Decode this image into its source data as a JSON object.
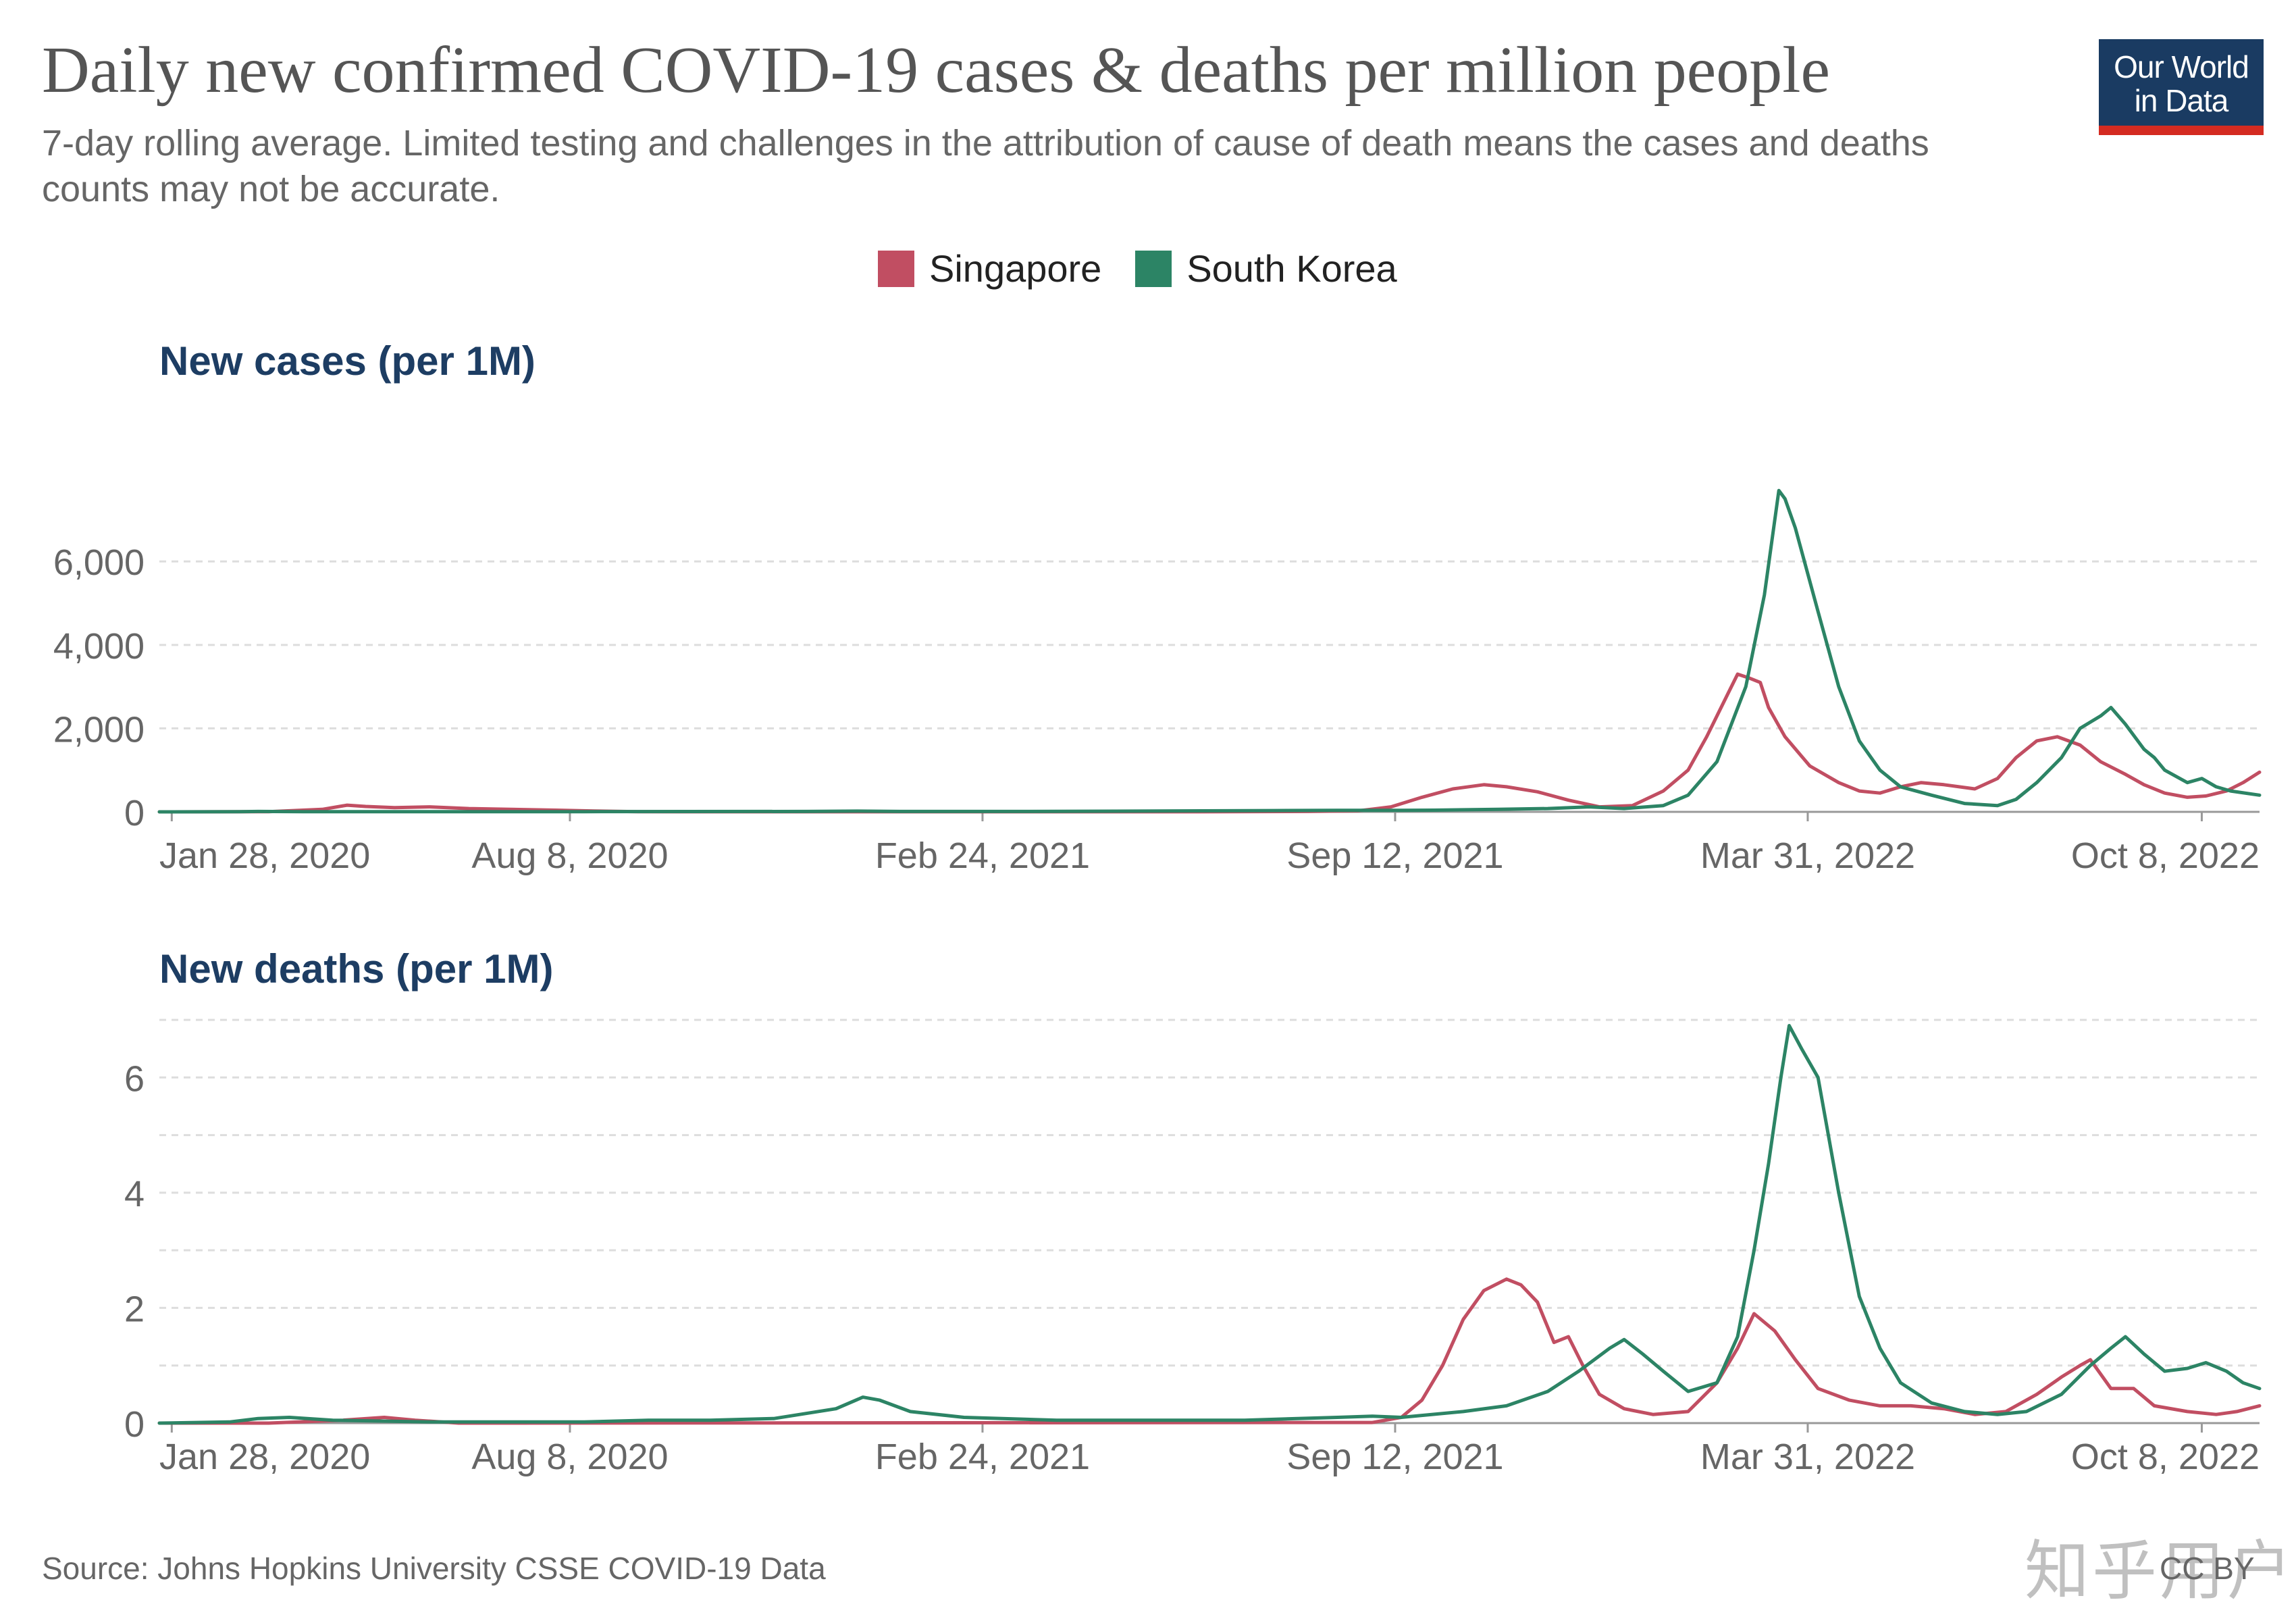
{
  "title": "Daily new confirmed COVID-19 cases & deaths per million people",
  "subtitle": "7-day rolling average. Limited testing and challenges in the attribution of cause of death means the cases and deaths counts may not be accurate.",
  "logo": {
    "line1": "Our World",
    "line2": "in Data"
  },
  "legend": [
    {
      "name": "Singapore",
      "color": "#c14e62"
    },
    {
      "name": "South Korea",
      "color": "#2c8465"
    }
  ],
  "source": "Source: Johns Hopkins University CSSE COVID-19 Data",
  "license": "CC BY",
  "watermark": "知乎用户",
  "chart_data": [
    {
      "type": "line",
      "title": "New cases (per 1M)",
      "x_axis": {
        "min": "2020-01-22",
        "max": "2022-11-05",
        "ticks": [
          "Jan 28, 2020",
          "Aug 8, 2020",
          "Feb 24, 2021",
          "Sep 12, 2021",
          "Mar 31, 2022",
          "Oct 8, 2022"
        ]
      },
      "ylim": [
        0,
        7800
      ],
      "yticks": [
        0,
        2000,
        4000,
        6000
      ],
      "ytick_labels": [
        "0",
        "2,000",
        "4,000",
        "6,000"
      ],
      "grid": true,
      "series": [
        {
          "name": "Singapore",
          "color": "#c14e62",
          "points": [
            [
              "2020-01-22",
              0
            ],
            [
              "2020-03-15",
              5
            ],
            [
              "2020-04-10",
              60
            ],
            [
              "2020-04-22",
              160
            ],
            [
              "2020-05-01",
              130
            ],
            [
              "2020-05-15",
              100
            ],
            [
              "2020-06-01",
              120
            ],
            [
              "2020-06-20",
              80
            ],
            [
              "2020-07-10",
              60
            ],
            [
              "2020-08-01",
              40
            ],
            [
              "2020-08-20",
              20
            ],
            [
              "2020-09-10",
              5
            ],
            [
              "2020-10-01",
              1
            ],
            [
              "2021-06-01",
              1
            ],
            [
              "2021-08-01",
              10
            ],
            [
              "2021-08-25",
              25
            ],
            [
              "2021-09-10",
              120
            ],
            [
              "2021-09-25",
              350
            ],
            [
              "2021-10-10",
              550
            ],
            [
              "2021-10-25",
              650
            ],
            [
              "2021-11-05",
              600
            ],
            [
              "2021-11-20",
              480
            ],
            [
              "2021-12-05",
              280
            ],
            [
              "2021-12-20",
              120
            ],
            [
              "2022-01-05",
              150
            ],
            [
              "2022-01-20",
              500
            ],
            [
              "2022-02-01",
              1000
            ],
            [
              "2022-02-10",
              1800
            ],
            [
              "2022-02-20",
              2800
            ],
            [
              "2022-02-25",
              3300
            ],
            [
              "2022-03-03",
              3200
            ],
            [
              "2022-03-08",
              3100
            ],
            [
              "2022-03-12",
              2500
            ],
            [
              "2022-03-20",
              1800
            ],
            [
              "2022-04-01",
              1100
            ],
            [
              "2022-04-15",
              700
            ],
            [
              "2022-04-25",
              500
            ],
            [
              "2022-05-05",
              450
            ],
            [
              "2022-05-15",
              600
            ],
            [
              "2022-05-25",
              700
            ],
            [
              "2022-06-05",
              650
            ],
            [
              "2022-06-20",
              550
            ],
            [
              "2022-07-01",
              800
            ],
            [
              "2022-07-10",
              1300
            ],
            [
              "2022-07-20",
              1700
            ],
            [
              "2022-07-30",
              1800
            ],
            [
              "2022-08-10",
              1600
            ],
            [
              "2022-08-20",
              1200
            ],
            [
              "2022-09-01",
              900
            ],
            [
              "2022-09-10",
              650
            ],
            [
              "2022-09-20",
              450
            ],
            [
              "2022-10-01",
              350
            ],
            [
              "2022-10-10",
              380
            ],
            [
              "2022-10-20",
              500
            ],
            [
              "2022-10-28",
              700
            ],
            [
              "2022-11-05",
              950
            ]
          ]
        },
        {
          "name": "South Korea",
          "color": "#2c8465",
          "points": [
            [
              "2020-01-22",
              0
            ],
            [
              "2020-03-01",
              5
            ],
            [
              "2020-03-10",
              10
            ],
            [
              "2020-04-01",
              3
            ],
            [
              "2020-08-15",
              5
            ],
            [
              "2020-09-01",
              6
            ],
            [
              "2020-12-01",
              10
            ],
            [
              "2020-12-25",
              18
            ],
            [
              "2021-01-15",
              10
            ],
            [
              "2021-04-01",
              12
            ],
            [
              "2021-07-15",
              30
            ],
            [
              "2021-08-15",
              35
            ],
            [
              "2021-09-15",
              35
            ],
            [
              "2021-10-01",
              40
            ],
            [
              "2021-11-01",
              60
            ],
            [
              "2021-11-25",
              80
            ],
            [
              "2021-12-15",
              120
            ],
            [
              "2022-01-01",
              80
            ],
            [
              "2022-01-20",
              150
            ],
            [
              "2022-02-01",
              400
            ],
            [
              "2022-02-15",
              1200
            ],
            [
              "2022-03-01",
              3000
            ],
            [
              "2022-03-10",
              5200
            ],
            [
              "2022-03-17",
              7700
            ],
            [
              "2022-03-20",
              7500
            ],
            [
              "2022-03-25",
              6800
            ],
            [
              "2022-04-05",
              4800
            ],
            [
              "2022-04-15",
              3000
            ],
            [
              "2022-04-25",
              1700
            ],
            [
              "2022-05-05",
              1000
            ],
            [
              "2022-05-15",
              600
            ],
            [
              "2022-05-30",
              400
            ],
            [
              "2022-06-15",
              200
            ],
            [
              "2022-07-01",
              150
            ],
            [
              "2022-07-10",
              300
            ],
            [
              "2022-07-20",
              700
            ],
            [
              "2022-08-01",
              1300
            ],
            [
              "2022-08-10",
              2000
            ],
            [
              "2022-08-20",
              2300
            ],
            [
              "2022-08-25",
              2500
            ],
            [
              "2022-09-01",
              2100
            ],
            [
              "2022-09-10",
              1500
            ],
            [
              "2022-09-15",
              1300
            ],
            [
              "2022-09-20",
              1000
            ],
            [
              "2022-10-01",
              700
            ],
            [
              "2022-10-08",
              800
            ],
            [
              "2022-10-15",
              600
            ],
            [
              "2022-10-22",
              500
            ],
            [
              "2022-11-05",
              400
            ]
          ]
        }
      ]
    },
    {
      "type": "line",
      "title": "New deaths (per 1M)",
      "x_axis": {
        "min": "2020-01-22",
        "max": "2022-11-05",
        "ticks": [
          "Jan 28, 2020",
          "Aug 8, 2020",
          "Feb 24, 2021",
          "Sep 12, 2021",
          "Mar 31, 2022",
          "Oct 8, 2022"
        ]
      },
      "ylim": [
        0,
        7
      ],
      "yticks": [
        0,
        1,
        2,
        3,
        4,
        5,
        6,
        7
      ],
      "ytick_labels": [
        "0",
        "",
        "2",
        "",
        "4",
        "",
        "6",
        ""
      ],
      "grid": true,
      "series": [
        {
          "name": "Singapore",
          "color": "#c14e62",
          "points": [
            [
              "2020-01-22",
              0
            ],
            [
              "2020-03-15",
              0
            ],
            [
              "2020-04-20",
              0.05
            ],
            [
              "2020-05-10",
              0.1
            ],
            [
              "2020-05-25",
              0.05
            ],
            [
              "2020-06-15",
              0
            ],
            [
              "2021-09-01",
              0.01
            ],
            [
              "2021-09-15",
              0.1
            ],
            [
              "2021-09-25",
              0.4
            ],
            [
              "2021-10-05",
              1.0
            ],
            [
              "2021-10-15",
              1.8
            ],
            [
              "2021-10-25",
              2.3
            ],
            [
              "2021-11-05",
              2.5
            ],
            [
              "2021-11-12",
              2.4
            ],
            [
              "2021-11-20",
              2.1
            ],
            [
              "2021-11-28",
              1.4
            ],
            [
              "2021-12-05",
              1.5
            ],
            [
              "2021-12-12",
              1.0
            ],
            [
              "2021-12-20",
              0.5
            ],
            [
              "2022-01-01",
              0.25
            ],
            [
              "2022-01-15",
              0.15
            ],
            [
              "2022-02-01",
              0.2
            ],
            [
              "2022-02-15",
              0.7
            ],
            [
              "2022-02-25",
              1.3
            ],
            [
              "2022-03-05",
              1.9
            ],
            [
              "2022-03-15",
              1.6
            ],
            [
              "2022-03-25",
              1.1
            ],
            [
              "2022-04-05",
              0.6
            ],
            [
              "2022-04-20",
              0.4
            ],
            [
              "2022-05-05",
              0.3
            ],
            [
              "2022-05-20",
              0.3
            ],
            [
              "2022-06-05",
              0.25
            ],
            [
              "2022-06-20",
              0.15
            ],
            [
              "2022-07-05",
              0.2
            ],
            [
              "2022-07-20",
              0.5
            ],
            [
              "2022-08-01",
              0.8
            ],
            [
              "2022-08-10",
              1.0
            ],
            [
              "2022-08-15",
              1.1
            ],
            [
              "2022-08-25",
              0.6
            ],
            [
              "2022-09-05",
              0.6
            ],
            [
              "2022-09-15",
              0.3
            ],
            [
              "2022-10-01",
              0.2
            ],
            [
              "2022-10-15",
              0.15
            ],
            [
              "2022-10-25",
              0.2
            ],
            [
              "2022-11-05",
              0.3
            ]
          ]
        },
        {
          "name": "South Korea",
          "color": "#2c8465",
          "points": [
            [
              "2020-01-22",
              0
            ],
            [
              "2020-02-25",
              0.02
            ],
            [
              "2020-03-10",
              0.08
            ],
            [
              "2020-03-25",
              0.1
            ],
            [
              "2020-04-15",
              0.05
            ],
            [
              "2020-06-01",
              0.02
            ],
            [
              "2020-08-15",
              0.02
            ],
            [
              "2020-09-15",
              0.05
            ],
            [
              "2020-10-15",
              0.05
            ],
            [
              "2020-11-15",
              0.08
            ],
            [
              "2020-12-15",
              0.25
            ],
            [
              "2020-12-28",
              0.45
            ],
            [
              "2021-01-05",
              0.4
            ],
            [
              "2021-01-20",
              0.2
            ],
            [
              "2021-02-15",
              0.1
            ],
            [
              "2021-04-01",
              0.05
            ],
            [
              "2021-07-01",
              0.05
            ],
            [
              "2021-08-15",
              0.1
            ],
            [
              "2021-09-01",
              0.12
            ],
            [
              "2021-09-15",
              0.1
            ],
            [
              "2021-10-15",
              0.2
            ],
            [
              "2021-11-05",
              0.3
            ],
            [
              "2021-11-25",
              0.55
            ],
            [
              "2021-12-10",
              0.9
            ],
            [
              "2021-12-25",
              1.3
            ],
            [
              "2022-01-01",
              1.45
            ],
            [
              "2022-01-10",
              1.2
            ],
            [
              "2022-01-20",
              0.9
            ],
            [
              "2022-02-01",
              0.55
            ],
            [
              "2022-02-15",
              0.7
            ],
            [
              "2022-02-25",
              1.5
            ],
            [
              "2022-03-05",
              3.0
            ],
            [
              "2022-03-12",
              4.5
            ],
            [
              "2022-03-18",
              6.0
            ],
            [
              "2022-03-22",
              6.9
            ],
            [
              "2022-03-28",
              6.5
            ],
            [
              "2022-04-05",
              6.0
            ],
            [
              "2022-04-15",
              4.0
            ],
            [
              "2022-04-25",
              2.2
            ],
            [
              "2022-05-05",
              1.3
            ],
            [
              "2022-05-15",
              0.7
            ],
            [
              "2022-05-30",
              0.35
            ],
            [
              "2022-06-15",
              0.2
            ],
            [
              "2022-07-01",
              0.15
            ],
            [
              "2022-07-15",
              0.2
            ],
            [
              "2022-08-01",
              0.5
            ],
            [
              "2022-08-15",
              1.0
            ],
            [
              "2022-08-25",
              1.3
            ],
            [
              "2022-09-01",
              1.5
            ],
            [
              "2022-09-10",
              1.2
            ],
            [
              "2022-09-20",
              0.9
            ],
            [
              "2022-10-01",
              0.95
            ],
            [
              "2022-10-10",
              1.05
            ],
            [
              "2022-10-20",
              0.9
            ],
            [
              "2022-10-28",
              0.7
            ],
            [
              "2022-11-05",
              0.6
            ]
          ]
        }
      ]
    }
  ]
}
